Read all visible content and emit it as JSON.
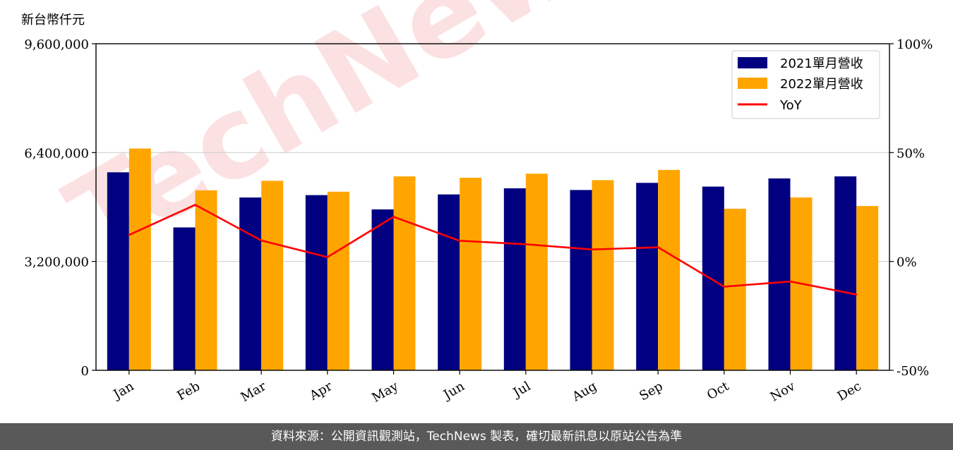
{
  "chart_data": {
    "type": "bar",
    "unit_label": "新台幣仟元",
    "categories": [
      "Jan",
      "Feb",
      "Mar",
      "Apr",
      "May",
      "Jun",
      "Jul",
      "Aug",
      "Sep",
      "Oct",
      "Nov",
      "Dec"
    ],
    "series": [
      {
        "name": "2021單月營收",
        "axis": "left",
        "color": "#000080",
        "values": [
          5820000,
          4200000,
          5080000,
          5150000,
          4730000,
          5170000,
          5350000,
          5300000,
          5510000,
          5400000,
          5640000,
          5700000
        ]
      },
      {
        "name": "2022單月營收",
        "axis": "left",
        "color": "#FFA500",
        "values": [
          6520000,
          5290000,
          5570000,
          5250000,
          5700000,
          5660000,
          5780000,
          5590000,
          5890000,
          4750000,
          5080000,
          4830000
        ]
      }
    ],
    "line_series": [
      {
        "name": "YoY",
        "axis": "right",
        "color": "#FF0000",
        "unit": "%",
        "values": [
          12.2,
          26.0,
          9.6,
          2.0,
          20.5,
          9.5,
          7.9,
          5.5,
          6.5,
          -11.6,
          -9.2,
          -15.2
        ]
      }
    ],
    "left_axis": {
      "ylim": [
        0,
        9600000
      ],
      "ticks": [
        0,
        3200000,
        6400000,
        9600000
      ],
      "tick_labels": [
        "0",
        "3,200,000",
        "6,400,000",
        "9,600,000"
      ]
    },
    "right_axis": {
      "ylim": [
        -50,
        100
      ],
      "ticks": [
        -50,
        0,
        50,
        100
      ],
      "tick_labels": [
        "-50%",
        "0%",
        "50%",
        "100%"
      ]
    },
    "grid": "horizontal",
    "legend_position": "top-right"
  },
  "watermark": "TechNews",
  "footer": {
    "text": "資料來源：公開資訊觀測站，TechNews 製表，確切最新訊息以原站公告為準"
  }
}
